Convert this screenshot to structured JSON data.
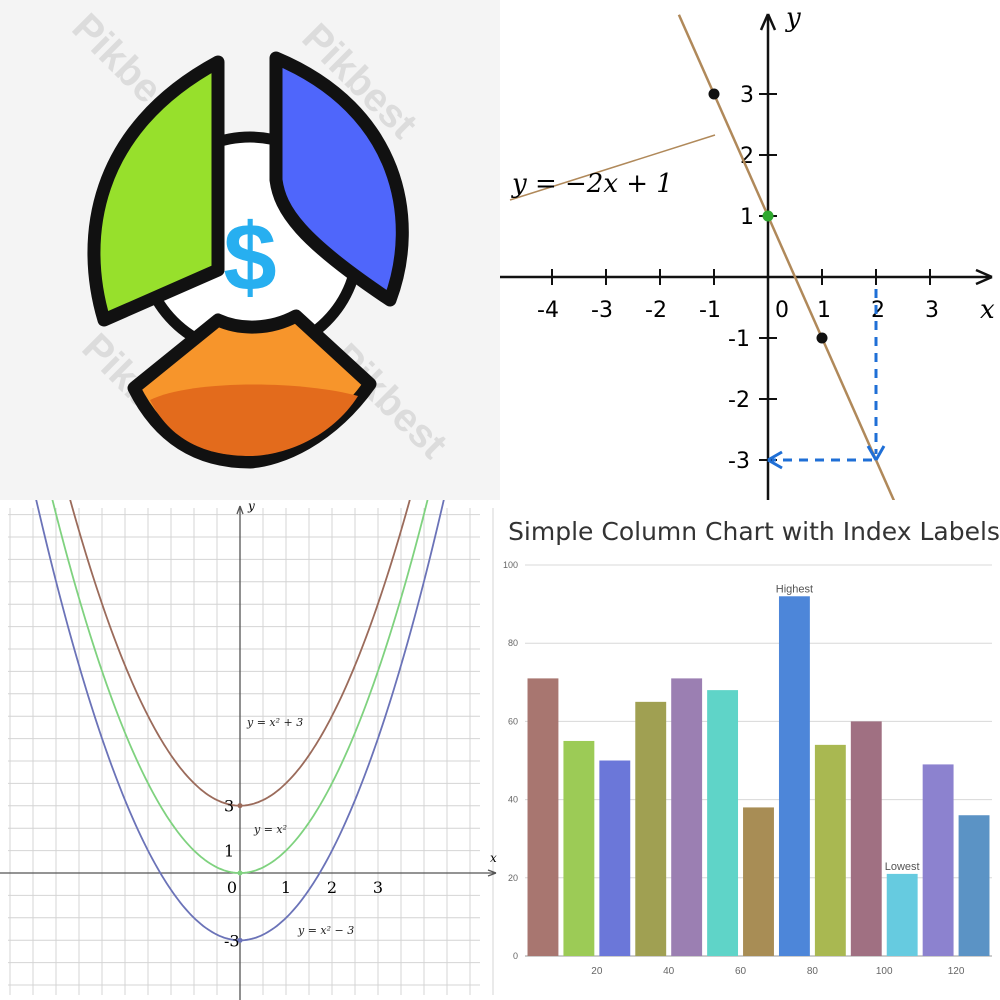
{
  "icon_panel": {
    "icon": "pie-chart-dollar-icon",
    "symbol": "$",
    "watermark": "Pikbest",
    "colors": {
      "green": "#97e02c",
      "blue": "#4f66fb",
      "orange": "#f7952b",
      "orange_dark": "#e36b1c",
      "dollar": "#27aff0",
      "outline": "#111111"
    }
  },
  "chart_data": [
    {
      "type": "line",
      "equation": "y = −2x + 1",
      "x_tick_labels": [
        "-4",
        "-3",
        "-2",
        "-1",
        "0",
        "1",
        "2",
        "3"
      ],
      "y_tick_labels": [
        "3",
        "2",
        "1",
        "-1",
        "-2",
        "-3"
      ],
      "xlabel": "x",
      "ylabel": "y",
      "slope": -2,
      "intercept": 1,
      "points": [
        {
          "x": -1,
          "y": 3
        },
        {
          "x": 0,
          "y": 1
        },
        {
          "x": 1,
          "y": -1
        }
      ],
      "dashed_guide": {
        "x": 2,
        "y": -3
      },
      "colors": {
        "line": "#b0895a",
        "guide": "#1f6fd6",
        "intercept": "#2fa82f"
      }
    },
    {
      "type": "line",
      "x_tick_labels": [
        "0",
        "1",
        "2",
        "3"
      ],
      "y_tick_labels": [
        "3",
        "1",
        "-3"
      ],
      "xlabel": "x",
      "ylabel": "y",
      "series": [
        {
          "name": "y = x² + 3",
          "c": 3,
          "color": "#9b6b5b"
        },
        {
          "name": "y = x²",
          "c": 0,
          "color": "#7fd27f"
        },
        {
          "name": "y = x² − 3",
          "c": -3,
          "color": "#6b73b8"
        }
      ]
    },
    {
      "type": "bar",
      "title": "Simple Column Chart with Index Labels",
      "x": [
        10,
        20,
        30,
        40,
        50,
        60,
        70,
        80,
        90,
        100,
        110,
        120,
        130
      ],
      "values": [
        71,
        55,
        50,
        65,
        71,
        68,
        38,
        92,
        54,
        60,
        21,
        49,
        36
      ],
      "x_tick_labels": [
        "20",
        "40",
        "60",
        "80",
        "100",
        "120"
      ],
      "y_tick_labels": [
        "0",
        "20",
        "40",
        "60",
        "80",
        "100"
      ],
      "ylim": [
        0,
        100
      ],
      "index_labels": {
        "7": "Highest",
        "10": "Lowest"
      },
      "colors": [
        "#a87670",
        "#9ccb56",
        "#6b77d9",
        "#a0a052",
        "#9b7fb2",
        "#5fd4c8",
        "#a88d55",
        "#4d86d9",
        "#a9b851",
        "#a07082",
        "#66cbe0",
        "#8c82cf",
        "#5b93c5"
      ]
    }
  ]
}
